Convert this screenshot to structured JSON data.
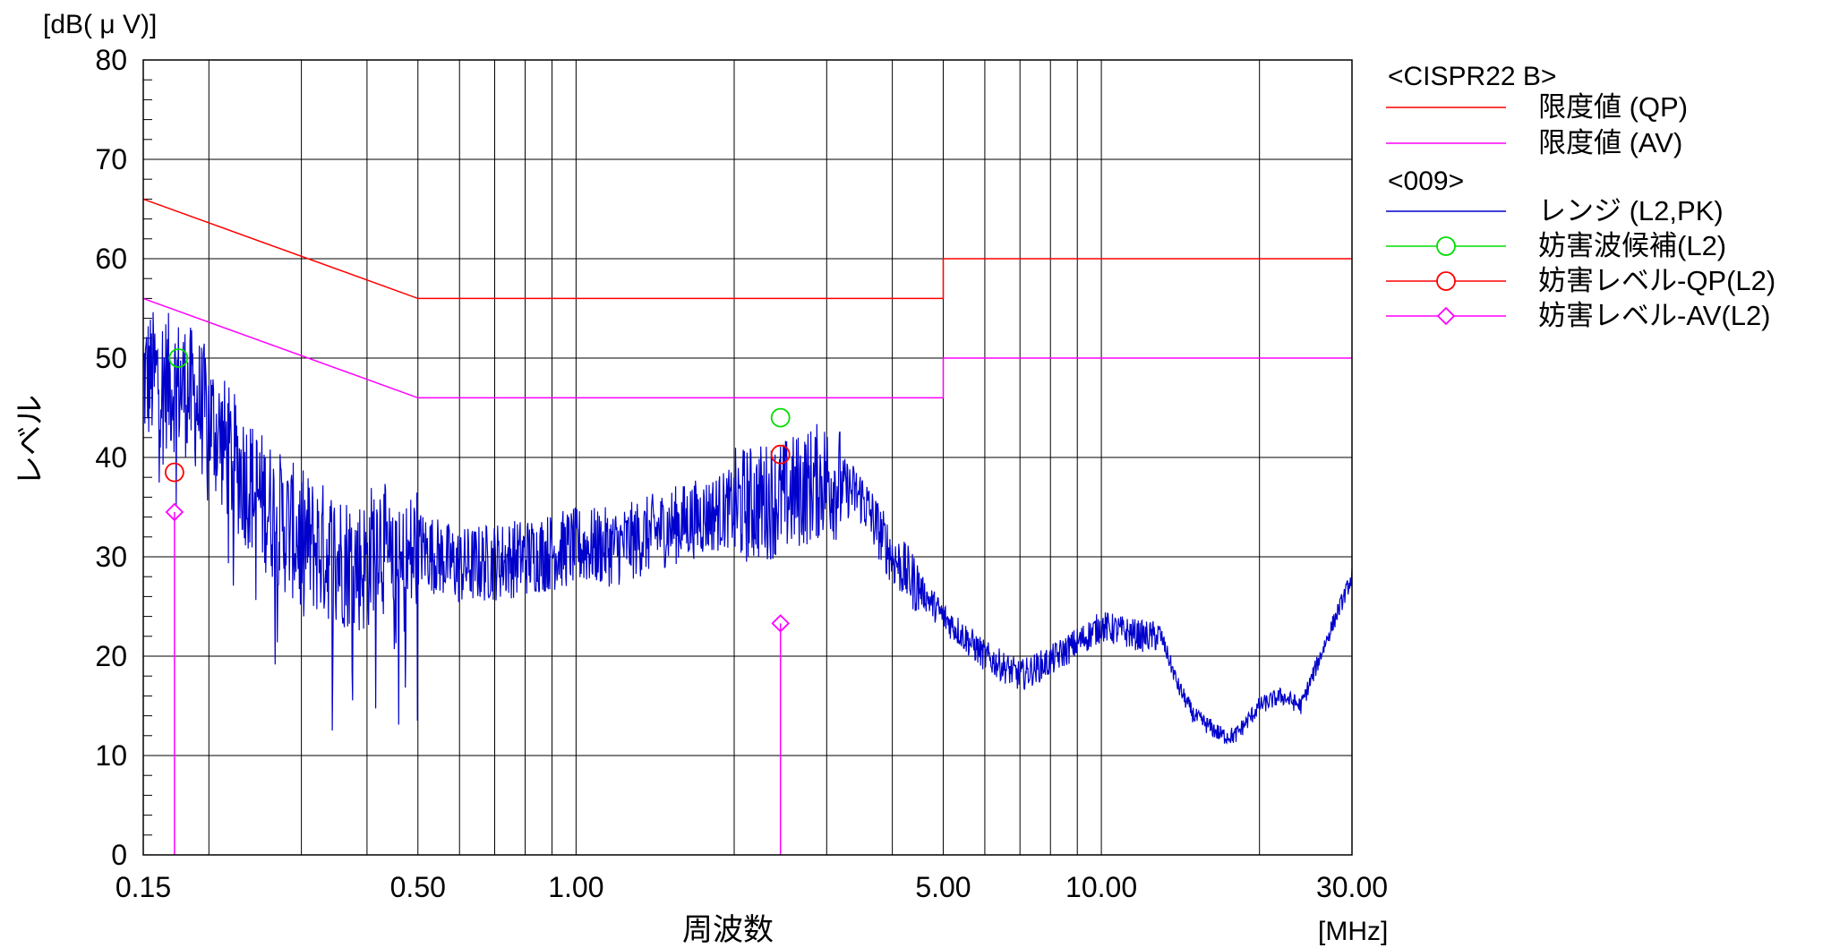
{
  "chart_data": {
    "type": "line",
    "y_unit": "[dB( μ V)]",
    "ylabel": "レベル",
    "xlabel": "周波数",
    "x_unit": "[MHz]",
    "x_scale": "log",
    "xlim": [
      0.15,
      30
    ],
    "ylim": [
      0,
      80
    ],
    "grid": true,
    "legend_position": "right",
    "y_ticks": [
      "0",
      "10",
      "20",
      "30",
      "40",
      "50",
      "60",
      "70",
      "80"
    ],
    "x_ticks": [
      {
        "value": 0.15,
        "label": "0.15"
      },
      {
        "value": 0.5,
        "label": "0.50"
      },
      {
        "value": 1.0,
        "label": "1.00"
      },
      {
        "value": 5.0,
        "label": "5.00"
      },
      {
        "value": 10.0,
        "label": "10.00"
      },
      {
        "value": 30.0,
        "label": "30.00"
      }
    ],
    "legend": {
      "group1_title": "<CISPR22 B>",
      "group2_title": "<009>",
      "items": [
        {
          "label": "限度値 (QP)",
          "color": "#ff0000",
          "marker": "none"
        },
        {
          "label": "限度値 (AV)",
          "color": "#ff00ff",
          "marker": "none"
        },
        {
          "label": "レンジ (L2,PK)",
          "color": "#0000cc",
          "marker": "none"
        },
        {
          "label": "妨害波候補(L2)",
          "color": "#00dd00",
          "marker": "circle"
        },
        {
          "label": "妨害レベル-QP(L2)",
          "color": "#ff0000",
          "marker": "circle"
        },
        {
          "label": "妨害レベル-AV(L2)",
          "color": "#ff00ff",
          "marker": "diamond"
        }
      ]
    },
    "limit_qp": [
      [
        0.15,
        66
      ],
      [
        0.5,
        56
      ],
      [
        5.0,
        56
      ],
      [
        5.0,
        60
      ],
      [
        30.0,
        60
      ]
    ],
    "limit_av": [
      [
        0.15,
        56
      ],
      [
        0.5,
        46
      ],
      [
        5.0,
        46
      ],
      [
        5.0,
        50
      ],
      [
        30.0,
        50
      ]
    ],
    "measurement_pk_envelope": [
      [
        0.15,
        48
      ],
      [
        0.16,
        48
      ],
      [
        0.18,
        47
      ],
      [
        0.2,
        44
      ],
      [
        0.22,
        40
      ],
      [
        0.25,
        36
      ],
      [
        0.28,
        33
      ],
      [
        0.32,
        31
      ],
      [
        0.35,
        30
      ],
      [
        0.4,
        29
      ],
      [
        0.42,
        33
      ],
      [
        0.45,
        27
      ],
      [
        0.5,
        31
      ],
      [
        0.6,
        29
      ],
      [
        0.8,
        30
      ],
      [
        1.0,
        31
      ],
      [
        1.2,
        31
      ],
      [
        1.5,
        33
      ],
      [
        2.0,
        35
      ],
      [
        2.5,
        36
      ],
      [
        3.0,
        38
      ],
      [
        3.5,
        36
      ],
      [
        4.0,
        30
      ],
      [
        5.0,
        24
      ],
      [
        6.0,
        20
      ],
      [
        7.0,
        18
      ],
      [
        8.0,
        19.5
      ],
      [
        10.0,
        23
      ],
      [
        12.0,
        22
      ],
      [
        13.0,
        22
      ],
      [
        14.0,
        17
      ],
      [
        15.0,
        14
      ],
      [
        17.0,
        12
      ],
      [
        18.0,
        12
      ],
      [
        20.0,
        15
      ],
      [
        22.0,
        16
      ],
      [
        24.0,
        15
      ],
      [
        27.0,
        22
      ],
      [
        30.0,
        28
      ]
    ],
    "suspect_points": [
      [
        0.175,
        50
      ],
      [
        2.45,
        44
      ]
    ],
    "qp_points": [
      [
        0.172,
        38.5
      ],
      [
        2.45,
        40.3
      ]
    ],
    "av_points": [
      [
        0.172,
        34.5
      ],
      [
        2.45,
        23.3
      ]
    ]
  }
}
